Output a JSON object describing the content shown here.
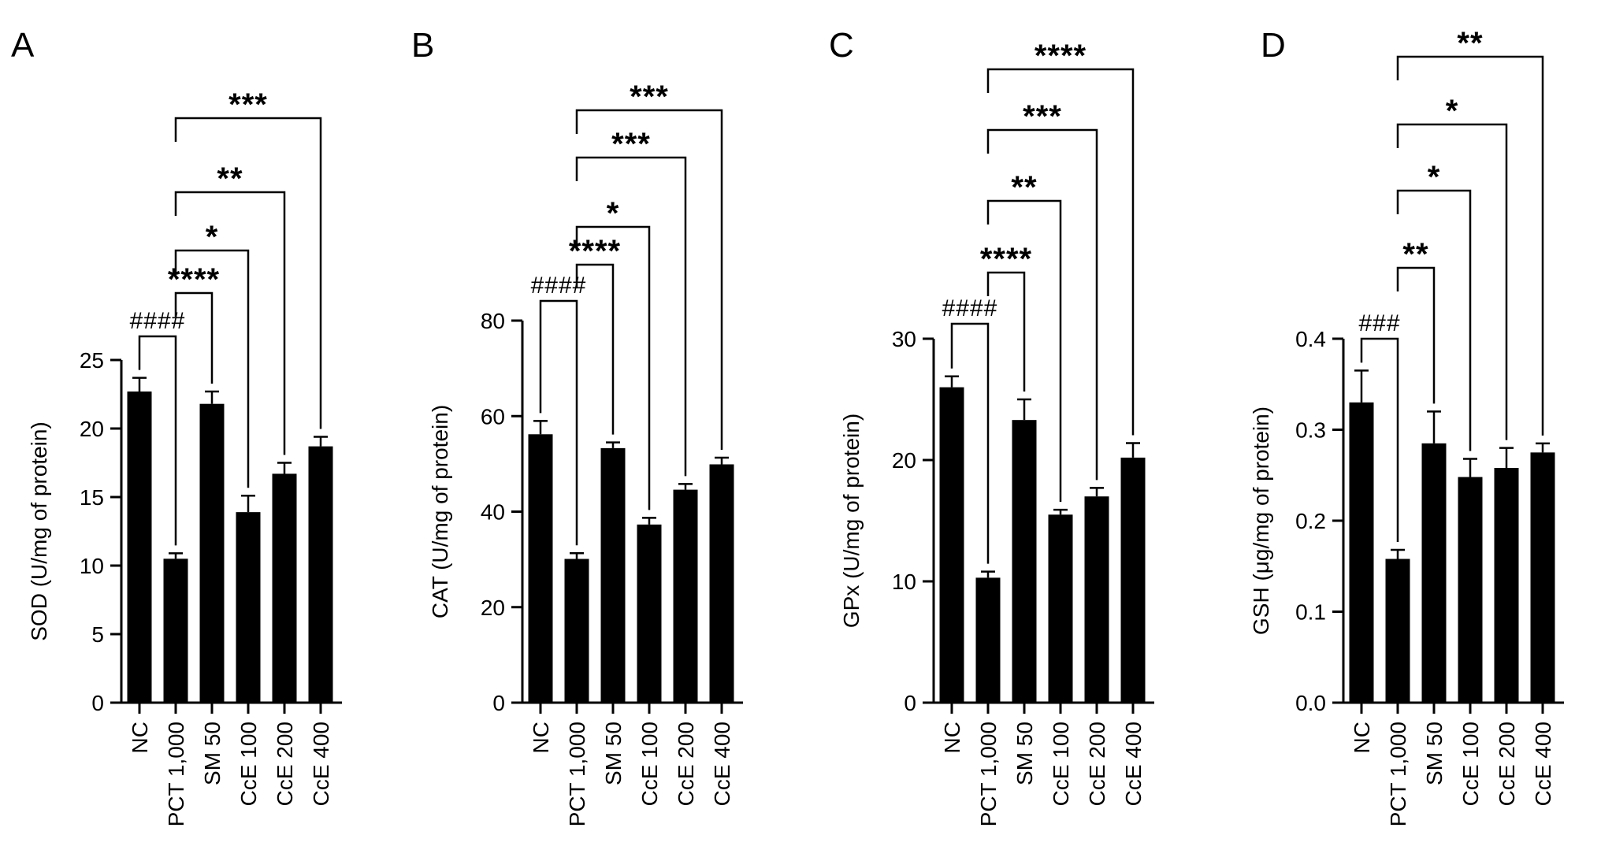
{
  "chart_data": [
    {
      "panel": "A",
      "type": "bar",
      "ylabel": "SOD (U/mg of protein)",
      "categories": [
        "NC",
        "PCT 1,000",
        "SM 50",
        "CcE 100",
        "CcE 200",
        "CcE 400"
      ],
      "values": [
        22.7,
        10.5,
        21.8,
        13.9,
        16.7,
        18.7
      ],
      "errors": [
        1.0,
        0.4,
        0.9,
        1.2,
        0.8,
        0.7
      ],
      "ylim": [
        0,
        25
      ],
      "yticks": [
        "0",
        "5",
        "10",
        "15",
        "20",
        "25"
      ],
      "comparisons": [
        {
          "from": "NC",
          "to": "PCT 1,000",
          "label": "####"
        },
        {
          "from": "PCT 1,000",
          "to": "SM 50",
          "label": "****"
        },
        {
          "from": "PCT 1,000",
          "to": "CcE 100",
          "label": "*"
        },
        {
          "from": "PCT 1,000",
          "to": "CcE 200",
          "label": "**"
        },
        {
          "from": "PCT 1,000",
          "to": "CcE 400",
          "label": "***"
        }
      ]
    },
    {
      "panel": "B",
      "type": "bar",
      "ylabel": "CAT (U/mg of protein)",
      "categories": [
        "NC",
        "PCT 1,000",
        "SM 50",
        "CcE 100",
        "CcE 200",
        "CcE 400"
      ],
      "values": [
        56.2,
        30.1,
        53.3,
        37.3,
        44.6,
        49.9
      ],
      "errors": [
        2.8,
        1.2,
        1.2,
        1.4,
        1.2,
        1.4
      ],
      "ylim": [
        0,
        80
      ],
      "yticks": [
        "0",
        "20",
        "40",
        "60",
        "80"
      ],
      "comparisons": [
        {
          "from": "NC",
          "to": "PCT 1,000",
          "label": "####"
        },
        {
          "from": "PCT 1,000",
          "to": "SM 50",
          "label": "****"
        },
        {
          "from": "PCT 1,000",
          "to": "CcE 100",
          "label": "*"
        },
        {
          "from": "PCT 1,000",
          "to": "CcE 200",
          "label": "***"
        },
        {
          "from": "PCT 1,000",
          "to": "CcE 400",
          "label": "***"
        }
      ]
    },
    {
      "panel": "C",
      "type": "bar",
      "ylabel": "GPx (U/mg of protein)",
      "categories": [
        "NC",
        "PCT 1,000",
        "SM 50",
        "CcE 100",
        "CcE 200",
        "CcE 400"
      ],
      "values": [
        26.0,
        10.3,
        23.3,
        15.5,
        17.0,
        20.2
      ],
      "errors": [
        0.9,
        0.5,
        1.7,
        0.4,
        0.7,
        1.2
      ],
      "ylim": [
        0,
        30
      ],
      "yticks": [
        "0",
        "10",
        "20",
        "30"
      ],
      "comparisons": [
        {
          "from": "NC",
          "to": "PCT 1,000",
          "label": "####"
        },
        {
          "from": "PCT 1,000",
          "to": "SM 50",
          "label": "****"
        },
        {
          "from": "PCT 1,000",
          "to": "CcE 100",
          "label": "**"
        },
        {
          "from": "PCT 1,000",
          "to": "CcE 200",
          "label": "***"
        },
        {
          "from": "PCT 1,000",
          "to": "CcE 400",
          "label": "****"
        }
      ]
    },
    {
      "panel": "D",
      "type": "bar",
      "ylabel": "GSH (μg/mg of protein)",
      "categories": [
        "NC",
        "PCT 1,000",
        "SM 50",
        "CcE 100",
        "CcE 200",
        "CcE 400"
      ],
      "values": [
        0.33,
        0.158,
        0.285,
        0.248,
        0.258,
        0.275
      ],
      "errors": [
        0.035,
        0.01,
        0.035,
        0.02,
        0.022,
        0.01
      ],
      "ylim": [
        0,
        0.4
      ],
      "yticks": [
        "0.0",
        "0.1",
        "0.2",
        "0.3",
        "0.4"
      ],
      "comparisons": [
        {
          "from": "NC",
          "to": "PCT 1,000",
          "label": "###"
        },
        {
          "from": "PCT 1,000",
          "to": "SM 50",
          "label": "**"
        },
        {
          "from": "PCT 1,000",
          "to": "CcE 100",
          "label": "*"
        },
        {
          "from": "PCT 1,000",
          "to": "CcE 200",
          "label": "*"
        },
        {
          "from": "PCT 1,000",
          "to": "CcE 400",
          "label": "**"
        }
      ]
    }
  ]
}
